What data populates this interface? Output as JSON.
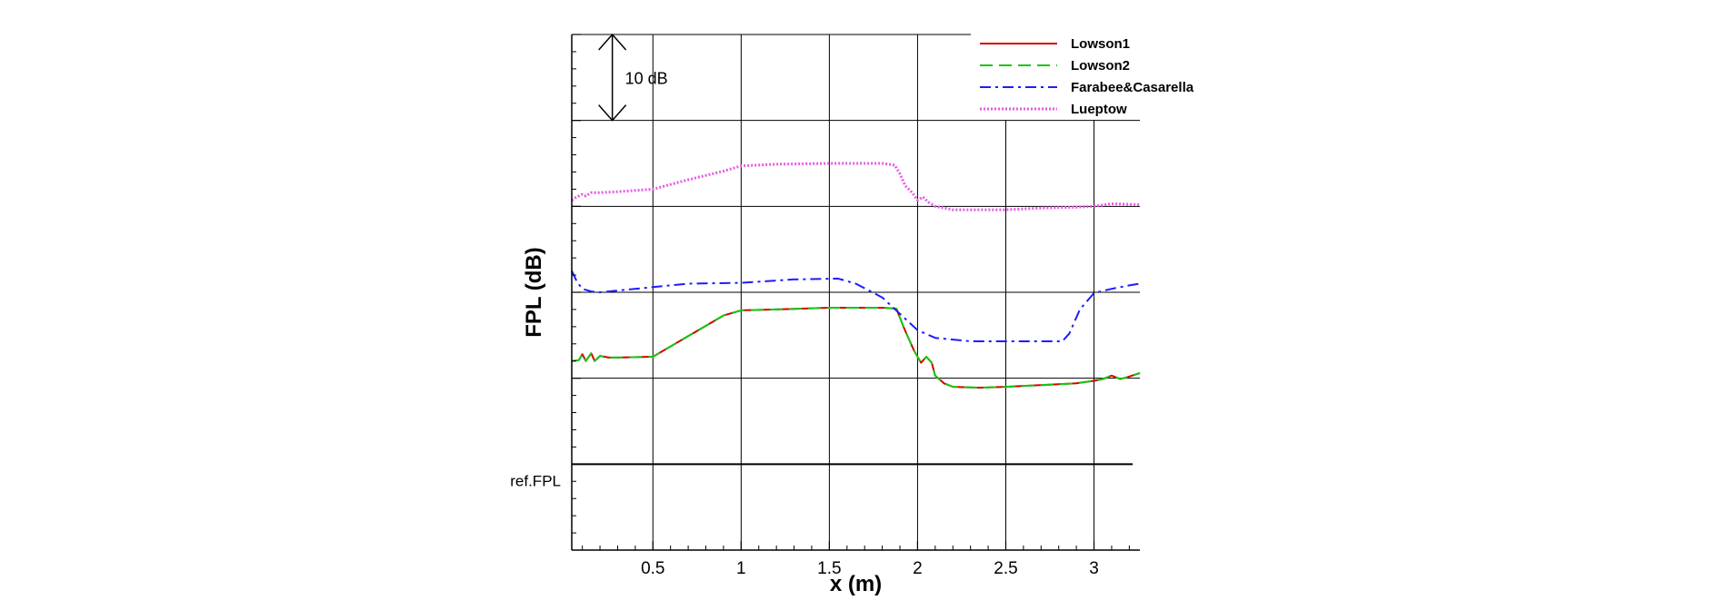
{
  "chart_data": {
    "type": "line",
    "xlabel": "x (m)",
    "ylabel": "FPL (dB)",
    "xlim": [
      0.04,
      3.26
    ],
    "ylim": [
      0,
      60
    ],
    "x_ticks": [
      0.5,
      1,
      1.5,
      2,
      2.5,
      3
    ],
    "x_tick_labels": [
      "0.5",
      "1",
      "1.5",
      "2",
      "2.5",
      "3"
    ],
    "y_gridlines": [
      10,
      20,
      30,
      40,
      50,
      60
    ],
    "y_tick_labels_shown": false,
    "reference_line": {
      "label": "ref.FPL",
      "y": 10
    },
    "scale_bar": {
      "label": "10 dB",
      "y_from": 50,
      "y_to": 60,
      "x": 0.27
    },
    "grid": true,
    "legend_position": "top-right",
    "series": [
      {
        "name": "Lowson1",
        "color": "#d40000",
        "style": "solid",
        "x": [
          0.04,
          0.08,
          0.1,
          0.12,
          0.15,
          0.17,
          0.2,
          0.25,
          0.3,
          0.5,
          0.7,
          0.9,
          1.0,
          1.2,
          1.5,
          1.8,
          1.88,
          1.92,
          1.95,
          1.98,
          2.0,
          2.02,
          2.05,
          2.08,
          2.1,
          2.15,
          2.2,
          2.35,
          2.5,
          2.7,
          2.9,
          3.0,
          3.05,
          3.1,
          3.15,
          3.2,
          3.26
        ],
        "values": [
          22.0,
          22.1,
          22.8,
          22.0,
          22.9,
          22.0,
          22.6,
          22.4,
          22.4,
          22.5,
          24.9,
          27.3,
          27.9,
          28.0,
          28.2,
          28.2,
          28.1,
          26.0,
          24.6,
          23.2,
          22.5,
          21.8,
          22.5,
          21.8,
          20.3,
          19.4,
          19.0,
          18.9,
          19.0,
          19.2,
          19.4,
          19.7,
          19.9,
          20.3,
          19.9,
          20.2,
          20.6
        ]
      },
      {
        "name": "Lowson2",
        "color": "#14c814",
        "style": "dashed",
        "x": [
          0.04,
          0.08,
          0.1,
          0.12,
          0.15,
          0.17,
          0.2,
          0.25,
          0.3,
          0.5,
          0.7,
          0.9,
          1.0,
          1.2,
          1.5,
          1.8,
          1.88,
          1.92,
          1.95,
          1.98,
          2.0,
          2.02,
          2.05,
          2.08,
          2.1,
          2.15,
          2.2,
          2.35,
          2.5,
          2.7,
          2.9,
          3.0,
          3.05,
          3.1,
          3.15,
          3.2,
          3.26
        ],
        "values": [
          22.0,
          22.1,
          22.8,
          22.0,
          22.9,
          22.0,
          22.6,
          22.4,
          22.4,
          22.5,
          24.9,
          27.3,
          27.9,
          28.0,
          28.2,
          28.2,
          28.1,
          26.0,
          24.6,
          23.2,
          22.5,
          21.8,
          22.5,
          21.8,
          20.3,
          19.4,
          19.0,
          18.9,
          19.0,
          19.2,
          19.4,
          19.7,
          19.9,
          20.3,
          19.9,
          20.2,
          20.6
        ]
      },
      {
        "name": "Farabee&Casarella",
        "color": "#1c1cff",
        "style": "dashdot",
        "x": [
          0.04,
          0.07,
          0.1,
          0.15,
          0.2,
          0.3,
          0.5,
          0.7,
          1.0,
          1.3,
          1.55,
          1.65,
          1.8,
          1.9,
          2.0,
          2.1,
          2.3,
          2.5,
          2.7,
          2.82,
          2.86,
          2.92,
          3.0,
          3.1,
          3.2,
          3.26
        ],
        "values": [
          32.5,
          31.2,
          30.4,
          30.1,
          30.0,
          30.2,
          30.6,
          31.0,
          31.1,
          31.5,
          31.6,
          31.0,
          29.4,
          27.5,
          25.6,
          24.7,
          24.3,
          24.3,
          24.3,
          24.3,
          25.2,
          28.0,
          29.9,
          30.4,
          30.8,
          31.0
        ]
      },
      {
        "name": "Lueptow",
        "color": "#e65ae6",
        "style": "dotted",
        "x": [
          0.04,
          0.06,
          0.1,
          0.12,
          0.15,
          0.2,
          0.3,
          0.5,
          0.7,
          0.9,
          1.0,
          1.2,
          1.5,
          1.8,
          1.87,
          1.9,
          1.93,
          1.96,
          1.98,
          2.0,
          2.03,
          2.06,
          2.1,
          2.2,
          2.3,
          2.5,
          2.7,
          2.9,
          3.0,
          3.1,
          3.26
        ],
        "values": [
          40.7,
          41.0,
          41.4,
          41.2,
          41.6,
          41.6,
          41.7,
          42.0,
          43.1,
          44.1,
          44.7,
          44.9,
          45.0,
          45.0,
          44.8,
          43.8,
          42.4,
          41.8,
          41.3,
          40.7,
          41.1,
          40.5,
          40.0,
          39.6,
          39.6,
          39.6,
          39.8,
          39.9,
          40.0,
          40.3,
          40.2
        ]
      }
    ]
  }
}
